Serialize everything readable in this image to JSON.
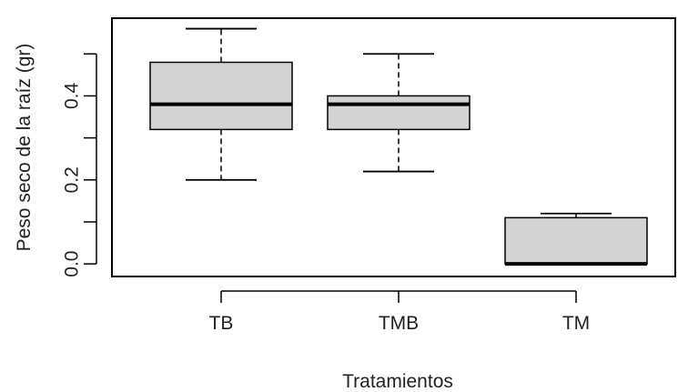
{
  "chart_data": {
    "type": "box",
    "xlabel": "Tratamientos",
    "ylabel": "Peso seco de la raíz (gr)",
    "ylim": [
      -0.03,
      0.585
    ],
    "yticks": [
      "0.0",
      "0.2",
      "0.4"
    ],
    "categories": [
      "TB",
      "TMB",
      "TM"
    ],
    "boxes": [
      {
        "category": "TB",
        "min": 0.2,
        "q1": 0.32,
        "median": 0.38,
        "q3": 0.48,
        "max": 0.56
      },
      {
        "category": "TMB",
        "min": 0.22,
        "q1": 0.32,
        "median": 0.38,
        "q3": 0.4,
        "max": 0.5
      },
      {
        "category": "TM",
        "min": 0.0,
        "q1": 0.0,
        "median": 0.0,
        "q3": 0.11,
        "max": 0.12
      }
    ],
    "box_fill": "#d3d3d3",
    "line_color": "#000000",
    "grid": false
  }
}
